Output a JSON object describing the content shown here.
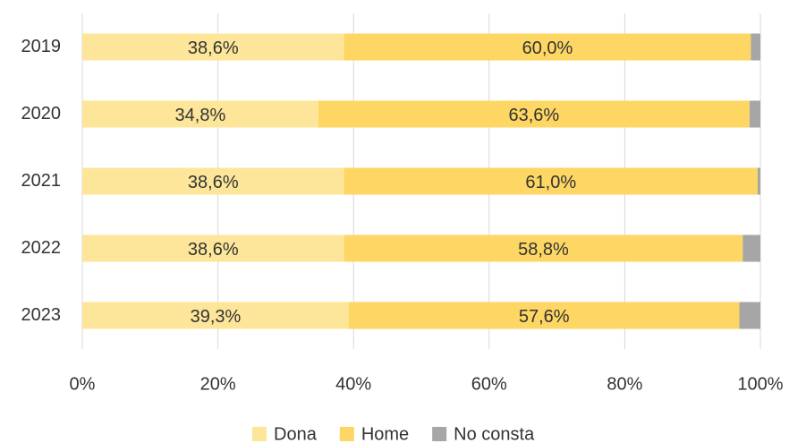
{
  "chart_data": {
    "type": "stacked_barh",
    "categories": [
      "2019",
      "2020",
      "2021",
      "2022",
      "2023"
    ],
    "series": [
      {
        "name": "Dona",
        "color": "#fde699",
        "values": [
          38.6,
          34.8,
          38.6,
          38.6,
          39.3
        ],
        "value_labels": [
          "38,6%",
          "34,8%",
          "38,6%",
          "38,6%",
          "39,3%"
        ]
      },
      {
        "name": "Home",
        "color": "#fdd663",
        "values": [
          60.0,
          63.6,
          61.0,
          58.8,
          57.6
        ],
        "value_labels": [
          "60,0%",
          "63,6%",
          "61,0%",
          "58,8%",
          "57,6%"
        ]
      },
      {
        "name": "No consta",
        "color": "#a6a6a6",
        "values": [
          1.4,
          1.6,
          0.4,
          2.6,
          3.1
        ]
      }
    ],
    "xlim": [
      0,
      100
    ],
    "xticks": [
      {
        "value": 0,
        "label": "0%"
      },
      {
        "value": 20,
        "label": "20%"
      },
      {
        "value": 40,
        "label": "40%"
      },
      {
        "value": 60,
        "label": "60%"
      },
      {
        "value": 80,
        "label": "80%"
      },
      {
        "value": 100,
        "label": "100%"
      }
    ],
    "grid": true,
    "legend": "bottom"
  }
}
